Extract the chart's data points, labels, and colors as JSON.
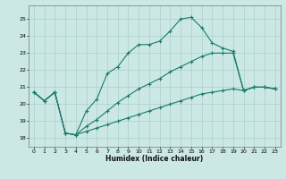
{
  "title": "",
  "xlabel": "Humidex (Indice chaleur)",
  "bg_color": "#cce8e4",
  "grid_color": "#aacfcb",
  "line_color": "#1a7a6e",
  "x_ticks": [
    0,
    1,
    2,
    3,
    4,
    5,
    6,
    7,
    8,
    9,
    10,
    11,
    12,
    13,
    14,
    15,
    16,
    17,
    18,
    19,
    20,
    21,
    22,
    23
  ],
  "y_ticks": [
    18,
    19,
    20,
    21,
    22,
    23,
    24,
    25
  ],
  "ylim": [
    17.5,
    25.8
  ],
  "xlim": [
    -0.5,
    23.5
  ],
  "line1_x": [
    0,
    1,
    2,
    3,
    4,
    5,
    6,
    7,
    8,
    9,
    10,
    11,
    12,
    13,
    14,
    15,
    16,
    17,
    18,
    19,
    20,
    21,
    22,
    23
  ],
  "line1_y": [
    20.7,
    20.2,
    20.7,
    18.3,
    18.2,
    19.6,
    20.3,
    21.8,
    22.2,
    23.0,
    23.5,
    23.5,
    23.7,
    24.3,
    25.0,
    25.1,
    24.5,
    23.6,
    23.3,
    23.1,
    20.8,
    21.0,
    21.0,
    20.9
  ],
  "line2_x": [
    0,
    1,
    2,
    3,
    4,
    5,
    6,
    7,
    8,
    9,
    10,
    11,
    12,
    13,
    14,
    15,
    16,
    17,
    18,
    19,
    20,
    21,
    22,
    23
  ],
  "line2_y": [
    20.7,
    20.2,
    20.7,
    18.3,
    18.2,
    18.7,
    19.1,
    19.6,
    20.1,
    20.5,
    20.9,
    21.2,
    21.5,
    21.9,
    22.2,
    22.5,
    22.8,
    23.0,
    23.0,
    23.0,
    20.8,
    21.0,
    21.0,
    20.9
  ],
  "line3_x": [
    0,
    1,
    2,
    3,
    4,
    5,
    6,
    7,
    8,
    9,
    10,
    11,
    12,
    13,
    14,
    15,
    16,
    17,
    18,
    19,
    20,
    21,
    22,
    23
  ],
  "line3_y": [
    20.7,
    20.2,
    20.7,
    18.3,
    18.2,
    18.4,
    18.6,
    18.8,
    19.0,
    19.2,
    19.4,
    19.6,
    19.8,
    20.0,
    20.2,
    20.4,
    20.6,
    20.7,
    20.8,
    20.9,
    20.8,
    21.0,
    21.0,
    20.9
  ]
}
